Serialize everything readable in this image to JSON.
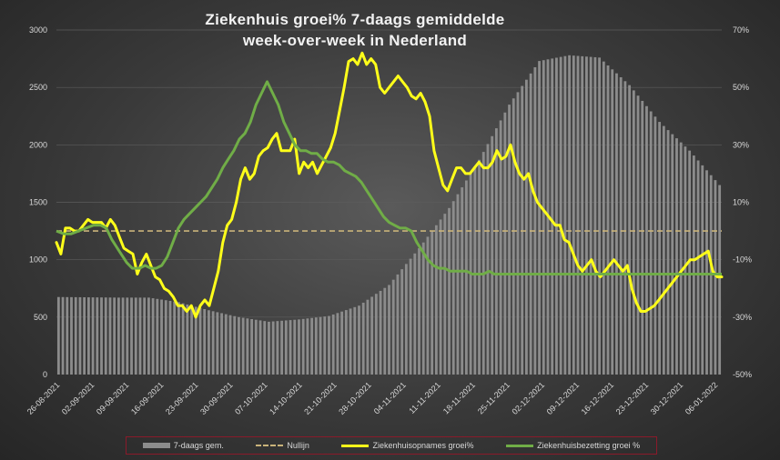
{
  "title_line1": "Ziekenhuis groei% 7-daags gemiddelde",
  "title_line2": "week-over-week in Nederland",
  "legend": {
    "bar": "7-daags gem.",
    "dash": "Nullijn",
    "yellow": "Ziekenhuisopnames groei%",
    "green": "Ziekenhuisbezetting groei %"
  },
  "colors": {
    "bar": "#8c8c8c",
    "zero": "#c9b37a",
    "yellow": "#ffff1a",
    "green": "#70ad47"
  },
  "chart_data": {
    "type": "bar",
    "ylim_left": [
      0,
      3000
    ],
    "yticks_left": [
      "0",
      "500",
      "1000",
      "1500",
      "2000",
      "2500",
      "3000"
    ],
    "ylim_right": [
      -50,
      70
    ],
    "yticks_right": [
      "-50%",
      "-30%",
      "-10%",
      "10%",
      "30%",
      "50%",
      "70%"
    ],
    "xtick_labels": [
      "26-08-2021",
      "02-09-2021",
      "09-09-2021",
      "16-09-2021",
      "23-09-2021",
      "30-09-2021",
      "07-10-2021",
      "14-10-2021",
      "21-10-2021",
      "28-10-2021",
      "04-11-2021",
      "11-11-2021",
      "18-11-2021",
      "25-11-2021",
      "02-12-2021",
      "09-12-2021",
      "16-12-2021",
      "23-12-2021",
      "30-12-2021",
      "06-01-2022"
    ],
    "bar_anchor_points": [
      [
        0,
        675
      ],
      [
        14,
        670
      ],
      [
        21,
        670
      ],
      [
        28,
        630
      ],
      [
        35,
        560
      ],
      [
        42,
        500
      ],
      [
        49,
        460
      ],
      [
        56,
        480
      ],
      [
        63,
        510
      ],
      [
        70,
        600
      ],
      [
        77,
        780
      ],
      [
        84,
        1100
      ],
      [
        91,
        1450
      ],
      [
        98,
        1870
      ],
      [
        105,
        2350
      ],
      [
        112,
        2730
      ],
      [
        119,
        2780
      ],
      [
        126,
        2760
      ],
      [
        133,
        2520
      ],
      [
        140,
        2200
      ],
      [
        147,
        1950
      ],
      [
        154,
        1650
      ]
    ],
    "series": [
      {
        "name": "Ziekenhuisopnames groei%",
        "points": [
          [
            0,
            -4
          ],
          [
            1,
            -8
          ],
          [
            2,
            1
          ],
          [
            3,
            1
          ],
          [
            4,
            0
          ],
          [
            5,
            0
          ],
          [
            6,
            2
          ],
          [
            7,
            4
          ],
          [
            8,
            3
          ],
          [
            9,
            3
          ],
          [
            10,
            3
          ],
          [
            11,
            1
          ],
          [
            12,
            4
          ],
          [
            13,
            2
          ],
          [
            14,
            -2
          ],
          [
            15,
            -6
          ],
          [
            16,
            -7
          ],
          [
            17,
            -8
          ],
          [
            18,
            -15
          ],
          [
            19,
            -11
          ],
          [
            20,
            -8
          ],
          [
            21,
            -12
          ],
          [
            22,
            -16
          ],
          [
            23,
            -17
          ],
          [
            24,
            -20
          ],
          [
            25,
            -21
          ],
          [
            26,
            -23
          ],
          [
            27,
            -26
          ],
          [
            28,
            -26
          ],
          [
            29,
            -28
          ],
          [
            30,
            -26
          ],
          [
            31,
            -30
          ],
          [
            32,
            -26
          ],
          [
            33,
            -24
          ],
          [
            34,
            -26
          ],
          [
            35,
            -20
          ],
          [
            36,
            -14
          ],
          [
            37,
            -4
          ],
          [
            38,
            2
          ],
          [
            39,
            4
          ],
          [
            40,
            10
          ],
          [
            41,
            18
          ],
          [
            42,
            22
          ],
          [
            43,
            18
          ],
          [
            44,
            20
          ],
          [
            45,
            26
          ],
          [
            46,
            28
          ],
          [
            47,
            29
          ],
          [
            48,
            32
          ],
          [
            49,
            34
          ],
          [
            50,
            28
          ],
          [
            51,
            28
          ],
          [
            52,
            28
          ],
          [
            53,
            32
          ],
          [
            54,
            20
          ],
          [
            55,
            24
          ],
          [
            56,
            22
          ],
          [
            57,
            24
          ],
          [
            58,
            20
          ],
          [
            59,
            23
          ],
          [
            60,
            26
          ],
          [
            61,
            29
          ],
          [
            62,
            34
          ],
          [
            63,
            42
          ],
          [
            64,
            50
          ],
          [
            65,
            59
          ],
          [
            66,
            60
          ],
          [
            67,
            58
          ],
          [
            68,
            62
          ],
          [
            69,
            58
          ],
          [
            70,
            60
          ],
          [
            71,
            58
          ],
          [
            72,
            50
          ],
          [
            73,
            48
          ],
          [
            74,
            50
          ],
          [
            75,
            52
          ],
          [
            76,
            54
          ],
          [
            77,
            52
          ],
          [
            78,
            50
          ],
          [
            79,
            47
          ],
          [
            80,
            46
          ],
          [
            81,
            48
          ],
          [
            82,
            45
          ],
          [
            83,
            40
          ],
          [
            84,
            28
          ],
          [
            85,
            22
          ],
          [
            86,
            16
          ],
          [
            87,
            14
          ],
          [
            88,
            18
          ],
          [
            89,
            22
          ],
          [
            90,
            22
          ],
          [
            91,
            20
          ],
          [
            92,
            20
          ],
          [
            93,
            22
          ],
          [
            94,
            24
          ],
          [
            95,
            22
          ],
          [
            96,
            22
          ],
          [
            97,
            24
          ],
          [
            98,
            28
          ],
          [
            99,
            25
          ],
          [
            100,
            26
          ],
          [
            101,
            30
          ],
          [
            102,
            24
          ],
          [
            103,
            20
          ],
          [
            104,
            18
          ],
          [
            105,
            20
          ],
          [
            106,
            14
          ],
          [
            107,
            10
          ],
          [
            108,
            8
          ],
          [
            109,
            6
          ],
          [
            110,
            4
          ],
          [
            111,
            2
          ],
          [
            112,
            2
          ],
          [
            113,
            -3
          ],
          [
            114,
            -4
          ],
          [
            115,
            -8
          ],
          [
            116,
            -12
          ],
          [
            117,
            -14
          ],
          [
            118,
            -12
          ],
          [
            119,
            -10
          ],
          [
            120,
            -14
          ],
          [
            121,
            -16
          ],
          [
            122,
            -14
          ],
          [
            123,
            -12
          ],
          [
            124,
            -10
          ],
          [
            125,
            -12
          ],
          [
            126,
            -14
          ],
          [
            127,
            -12
          ],
          [
            128,
            -20
          ],
          [
            129,
            -25
          ],
          [
            130,
            -28
          ],
          [
            131,
            -28
          ],
          [
            132,
            -27
          ],
          [
            133,
            -26
          ],
          [
            134,
            -24
          ],
          [
            135,
            -22
          ],
          [
            136,
            -20
          ],
          [
            137,
            -18
          ],
          [
            138,
            -16
          ],
          [
            139,
            -14
          ],
          [
            140,
            -12
          ],
          [
            141,
            -10
          ],
          [
            142,
            -10
          ],
          [
            143,
            -9
          ],
          [
            144,
            -8
          ],
          [
            145,
            -7
          ],
          [
            146,
            -14
          ],
          [
            147,
            -16
          ],
          [
            148,
            -16
          ]
        ]
      },
      {
        "name": "Ziekenhuisbezetting groei %",
        "points": [
          [
            0,
            0
          ],
          [
            4,
            -1
          ],
          [
            8,
            -1
          ],
          [
            12,
            0
          ],
          [
            16,
            1
          ],
          [
            20,
            2
          ],
          [
            24,
            2
          ],
          [
            27,
            1
          ],
          [
            30,
            -3
          ],
          [
            34,
            -7
          ],
          [
            38,
            -11
          ],
          [
            41,
            -13
          ],
          [
            45,
            -13
          ],
          [
            48,
            -12
          ],
          [
            51,
            -13
          ],
          [
            54,
            -13
          ],
          [
            57,
            -12
          ],
          [
            60,
            -9
          ],
          [
            63,
            -4
          ],
          [
            66,
            1
          ],
          [
            69,
            4
          ],
          [
            72,
            6
          ],
          [
            75,
            8
          ],
          [
            78,
            10
          ],
          [
            81,
            12
          ],
          [
            84,
            15
          ],
          [
            87,
            18
          ],
          [
            90,
            22
          ],
          [
            93,
            25
          ],
          [
            96,
            28
          ],
          [
            99,
            32
          ],
          [
            102,
            34
          ],
          [
            105,
            38
          ],
          [
            108,
            44
          ],
          [
            111,
            48
          ],
          [
            114,
            52
          ],
          [
            117,
            48
          ],
          [
            120,
            44
          ],
          [
            123,
            38
          ],
          [
            126,
            34
          ],
          [
            129,
            30
          ],
          [
            132,
            28
          ],
          [
            135,
            28
          ],
          [
            138,
            27
          ],
          [
            141,
            27
          ],
          [
            144,
            25
          ],
          [
            147,
            24
          ],
          [
            150,
            24
          ],
          [
            153,
            23
          ],
          [
            156,
            21
          ],
          [
            159,
            20
          ],
          [
            162,
            19
          ],
          [
            165,
            17
          ],
          [
            168,
            14
          ],
          [
            171,
            11
          ],
          [
            174,
            8
          ],
          [
            177,
            5
          ],
          [
            180,
            3
          ],
          [
            183,
            2
          ],
          [
            186,
            1
          ],
          [
            189,
            1
          ],
          [
            192,
            0
          ],
          [
            195,
            -4
          ],
          [
            198,
            -7
          ],
          [
            201,
            -10
          ],
          [
            204,
            -12
          ],
          [
            207,
            -13
          ],
          [
            210,
            -13
          ],
          [
            213,
            -14
          ],
          [
            216,
            -14
          ],
          [
            219,
            -14
          ],
          [
            222,
            -14
          ],
          [
            225,
            -15
          ],
          [
            228,
            -15
          ],
          [
            231,
            -15
          ],
          [
            234,
            -14
          ],
          [
            237,
            -15
          ],
          [
            240,
            -15
          ],
          [
            243,
            -15
          ],
          [
            246,
            -15
          ],
          [
            249,
            -15
          ],
          [
            252,
            -15
          ],
          [
            255,
            -15
          ],
          [
            258,
            -15
          ],
          [
            261,
            -15
          ],
          [
            264,
            -15
          ],
          [
            267,
            -15
          ],
          [
            270,
            -15
          ],
          [
            273,
            -15
          ],
          [
            276,
            -15
          ],
          [
            279,
            -15
          ],
          [
            282,
            -15
          ],
          [
            285,
            -15
          ],
          [
            288,
            -15
          ],
          [
            291,
            -15
          ],
          [
            294,
            -15
          ],
          [
            297,
            -15
          ],
          [
            300,
            -15
          ],
          [
            303,
            -15
          ],
          [
            306,
            -15
          ],
          [
            309,
            -15
          ],
          [
            312,
            -15
          ],
          [
            315,
            -15
          ],
          [
            318,
            -15
          ],
          [
            321,
            -15
          ],
          [
            324,
            -15
          ],
          [
            327,
            -15
          ],
          [
            330,
            -15
          ],
          [
            333,
            -15
          ],
          [
            336,
            -15
          ],
          [
            339,
            -15
          ],
          [
            342,
            -15
          ],
          [
            345,
            -15
          ],
          [
            348,
            -15
          ],
          [
            351,
            -15
          ],
          [
            354,
            -15
          ],
          [
            357,
            -15
          ],
          [
            360,
            -15
          ]
        ]
      }
    ],
    "zero_line": 0,
    "grid": true
  }
}
